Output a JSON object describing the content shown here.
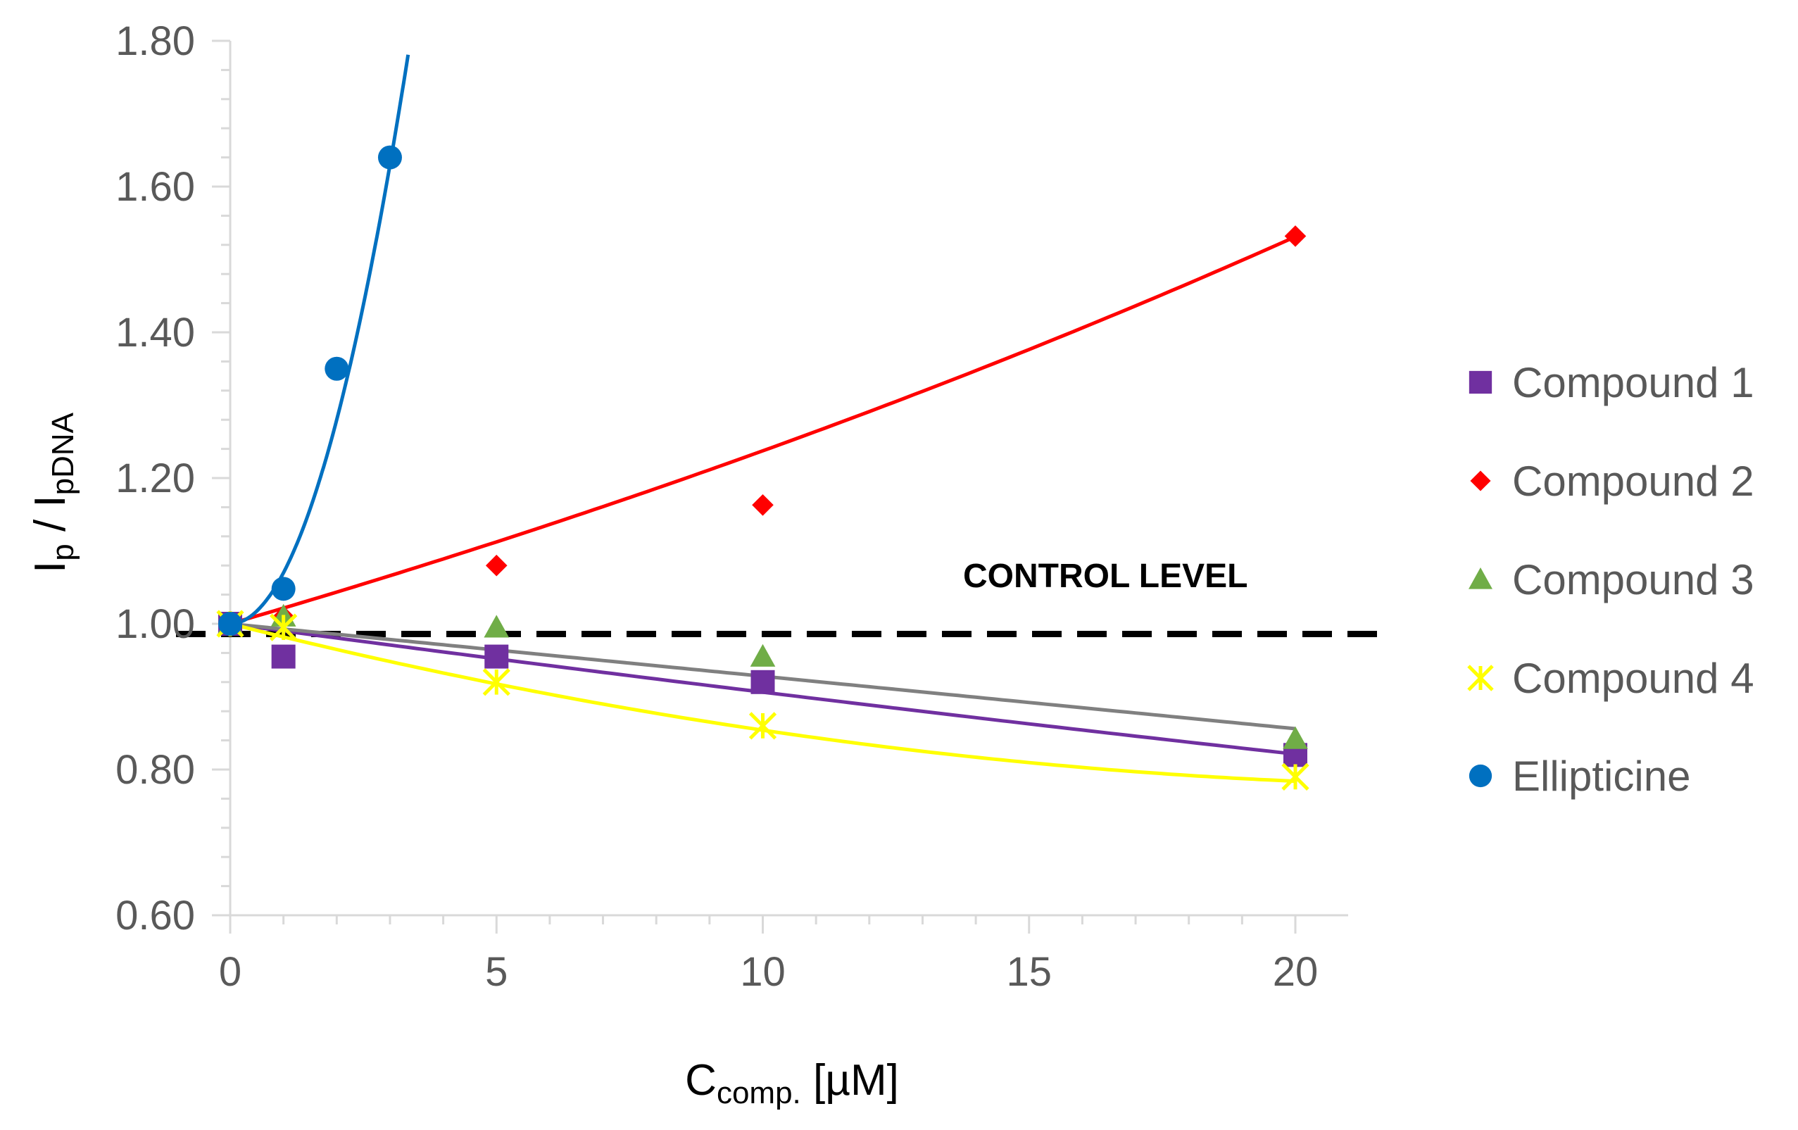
{
  "chart_data": {
    "type": "scatter",
    "title": "",
    "xlabel": {
      "main": "C",
      "sub": "comp.",
      "rest": " [µM]"
    },
    "ylabel": {
      "a": "I",
      "a_sub": "p",
      "mid": " / I",
      "b_sub": "pDNA"
    },
    "xlim": [
      0,
      20
    ],
    "ylim": [
      0.6,
      1.8
    ],
    "x_ticks": [
      "0",
      "5",
      "10",
      "15",
      "20"
    ],
    "y_ticks": [
      "0.60",
      "0.80",
      "1.00",
      "1.20",
      "1.40",
      "1.60",
      "1.80"
    ],
    "grid": false,
    "legend_position": "right",
    "control_level": {
      "value": 0.986,
      "label": "CONTROL LEVEL"
    },
    "series": [
      {
        "name": "Compound 1",
        "color": "#7030A0",
        "marker": "square",
        "x": [
          0,
          1,
          5,
          10,
          20
        ],
        "y": [
          1.0,
          0.955,
          0.955,
          0.92,
          0.82
        ],
        "fit": {
          "type": "exponential",
          "a": 1.0,
          "b": -0.00985,
          "color": "#7030A0"
        }
      },
      {
        "name": "Compound 2",
        "color": "#FF0000",
        "marker": "diamond",
        "x": [
          0,
          1,
          5,
          10,
          20
        ],
        "y": [
          1.0,
          1.01,
          1.08,
          1.163,
          1.532
        ],
        "fit": {
          "type": "exponential",
          "a": 1.0,
          "b": 0.0213,
          "color": "#FF0000"
        }
      },
      {
        "name": "Compound 3",
        "color": "#70AD47",
        "marker": "triangle",
        "x": [
          0,
          1,
          5,
          10,
          20
        ],
        "y": [
          1.0,
          1.01,
          0.995,
          0.955,
          0.842
        ],
        "fit": {
          "type": "linear",
          "slope": -0.0072,
          "intercept": 1.0,
          "color": "#808080"
        }
      },
      {
        "name": "Compound 4",
        "color": "#FFFF00",
        "marker": "asterisk",
        "x": [
          0,
          1,
          5,
          10,
          20
        ],
        "y": [
          1.0,
          0.995,
          0.92,
          0.86,
          0.79
        ],
        "fit": {
          "type": "power2",
          "a": -0.0184,
          "b": 0.00038,
          "c": 1.0,
          "color": "#FFFF00"
        }
      },
      {
        "name": "Ellipticine",
        "color": "#0070C0",
        "marker": "circle",
        "x": [
          0,
          1,
          2,
          3
        ],
        "y": [
          1.0,
          1.048,
          1.35,
          1.64
        ],
        "fit": {
          "type": "poly2",
          "a": 0.07,
          "b": 0.0,
          "c": 1.0,
          "xmax": 3.34,
          "color": "#0070C0"
        }
      }
    ]
  }
}
